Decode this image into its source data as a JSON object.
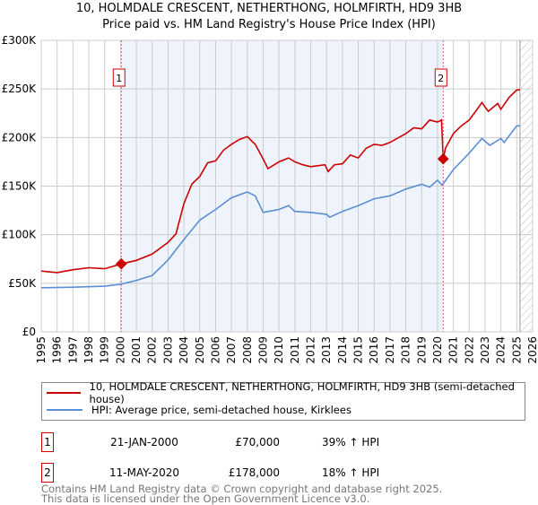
{
  "chart_data": {
    "type": "line",
    "title": "10, HOLMDALE CRESCENT, NETHERTHONG, HOLMFIRTH, HD9 3HB",
    "subtitle": "Price paid vs. HM Land Registry's House Price Index (HPI)",
    "xlim": [
      1995,
      2026
    ],
    "ylim": [
      0,
      300000
    ],
    "x_ticks": [
      "1995",
      "1996",
      "1997",
      "1998",
      "1999",
      "2000",
      "2001",
      "2002",
      "2003",
      "2004",
      "2005",
      "2006",
      "2007",
      "2008",
      "2009",
      "2010",
      "2011",
      "2012",
      "2013",
      "2014",
      "2015",
      "2016",
      "2017",
      "2018",
      "2019",
      "2020",
      "2021",
      "2022",
      "2023",
      "2024",
      "2025",
      "2026"
    ],
    "y_ticks": [
      {
        "v": 0,
        "label": "£0"
      },
      {
        "v": 50000,
        "label": "£50K"
      },
      {
        "v": 100000,
        "label": "£100K"
      },
      {
        "v": 150000,
        "label": "£150K"
      },
      {
        "v": 200000,
        "label": "£200K"
      },
      {
        "v": 250000,
        "label": "£250K"
      },
      {
        "v": 300000,
        "label": "£300K"
      }
    ],
    "shaded_period": [
      2000.05,
      2020.36
    ],
    "forecast_from": 2025.2,
    "series": [
      {
        "name": "10, HOLMDALE CRESCENT, NETHERTHONG, HOLMFIRTH, HD9 3HB (semi-detached house)",
        "color": "#cc0000",
        "points": [
          [
            1995,
            62600
          ],
          [
            1996,
            61000
          ],
          [
            1997,
            64000
          ],
          [
            1998,
            66000
          ],
          [
            1999,
            65000
          ],
          [
            2000.05,
            70000
          ],
          [
            2001,
            73600
          ],
          [
            2002,
            80000
          ],
          [
            2003,
            92000
          ],
          [
            2003.5,
            101000
          ],
          [
            2004,
            132000
          ],
          [
            2004.5,
            152000
          ],
          [
            2005,
            160000
          ],
          [
            2005.5,
            174000
          ],
          [
            2006,
            176000
          ],
          [
            2006.5,
            187000
          ],
          [
            2007,
            193000
          ],
          [
            2007.5,
            198000
          ],
          [
            2008,
            201000
          ],
          [
            2008.5,
            193000
          ],
          [
            2009,
            178000
          ],
          [
            2009.3,
            168000
          ],
          [
            2010,
            175000
          ],
          [
            2010.6,
            179000
          ],
          [
            2011,
            175000
          ],
          [
            2011.5,
            172000
          ],
          [
            2012,
            170000
          ],
          [
            2012.9,
            172000
          ],
          [
            2013.1,
            165000
          ],
          [
            2013.5,
            172000
          ],
          [
            2014,
            173000
          ],
          [
            2014.5,
            182000
          ],
          [
            2015,
            179000
          ],
          [
            2015.5,
            189000
          ],
          [
            2016,
            193000
          ],
          [
            2016.5,
            192000
          ],
          [
            2017,
            195000
          ],
          [
            2018,
            204000
          ],
          [
            2018.5,
            210000
          ],
          [
            2019,
            209000
          ],
          [
            2019.5,
            218000
          ],
          [
            2020,
            216000
          ],
          [
            2020.25,
            218000
          ],
          [
            2020.36,
            178000
          ],
          [
            2020.5,
            189000
          ],
          [
            2021,
            204000
          ],
          [
            2021.5,
            212000
          ],
          [
            2022,
            218000
          ],
          [
            2022.5,
            229000
          ],
          [
            2022.8,
            236000
          ],
          [
            2023.2,
            227000
          ],
          [
            2023.8,
            235000
          ],
          [
            2024,
            229000
          ],
          [
            2024.5,
            241000
          ],
          [
            2025,
            249000
          ],
          [
            2025.2,
            249000
          ]
        ]
      },
      {
        "name": "HPI: Average price, semi-detached house, Kirklees",
        "color": "#5b8fd4",
        "points": [
          [
            1995,
            45400
          ],
          [
            1997,
            46000
          ],
          [
            1999,
            47000
          ],
          [
            2000,
            49000
          ],
          [
            2001,
            53000
          ],
          [
            2002,
            58000
          ],
          [
            2003,
            74000
          ],
          [
            2004,
            95000
          ],
          [
            2005,
            115000
          ],
          [
            2006,
            126000
          ],
          [
            2007,
            138000
          ],
          [
            2008,
            144000
          ],
          [
            2008.5,
            140000
          ],
          [
            2009,
            123000
          ],
          [
            2010,
            126000
          ],
          [
            2010.6,
            130000
          ],
          [
            2011,
            124000
          ],
          [
            2012,
            123000
          ],
          [
            2013,
            121000
          ],
          [
            2013.2,
            118000
          ],
          [
            2014,
            124000
          ],
          [
            2015,
            130000
          ],
          [
            2016,
            137000
          ],
          [
            2017,
            140000
          ],
          [
            2018,
            147000
          ],
          [
            2019,
            152000
          ],
          [
            2019.5,
            149000
          ],
          [
            2020,
            156000
          ],
          [
            2020.3,
            151000
          ],
          [
            2021,
            167000
          ],
          [
            2022,
            184000
          ],
          [
            2022.8,
            199000
          ],
          [
            2023.3,
            192000
          ],
          [
            2024,
            199000
          ],
          [
            2024.2,
            195000
          ],
          [
            2025,
            212000
          ],
          [
            2025.2,
            212000
          ]
        ]
      }
    ],
    "sales": [
      {
        "label": "1",
        "x": 2000.05,
        "value": 70000
      },
      {
        "label": "2",
        "x": 2020.36,
        "value": 178000
      }
    ]
  },
  "legend": {
    "red": "10, HOLMDALE CRESCENT, NETHERTHONG, HOLMFIRTH, HD9 3HB (semi-detached house)",
    "blue": "HPI: Average price, semi-detached house, Kirklees"
  },
  "transactions": [
    {
      "num": "1",
      "date": "21-JAN-2000",
      "price": "£70,000",
      "hpi": "39% ↑ HPI"
    },
    {
      "num": "2",
      "date": "11-MAY-2020",
      "price": "£178,000",
      "hpi": "18% ↑ HPI"
    }
  ],
  "footer": [
    "Contains HM Land Registry data © Crown copyright and database right 2025.",
    "This data is licensed under the Open Government Licence v3.0."
  ]
}
